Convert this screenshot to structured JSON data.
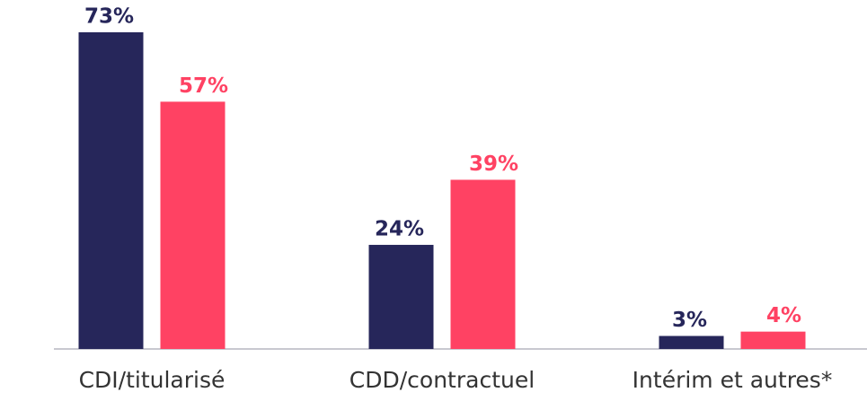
{
  "chart_data": {
    "type": "bar",
    "categories": [
      "CDI/titularisé",
      "CDD/contractuel",
      "Intérim et autres*"
    ],
    "series": [
      {
        "color": "#26265a",
        "values": [
          73,
          24,
          3
        ],
        "value_labels": [
          "73%",
          "24%",
          "3%"
        ]
      },
      {
        "color": "#ff4263",
        "values": [
          57,
          39,
          4
        ],
        "value_labels": [
          "57%",
          "39%",
          "4%"
        ]
      }
    ]
  }
}
